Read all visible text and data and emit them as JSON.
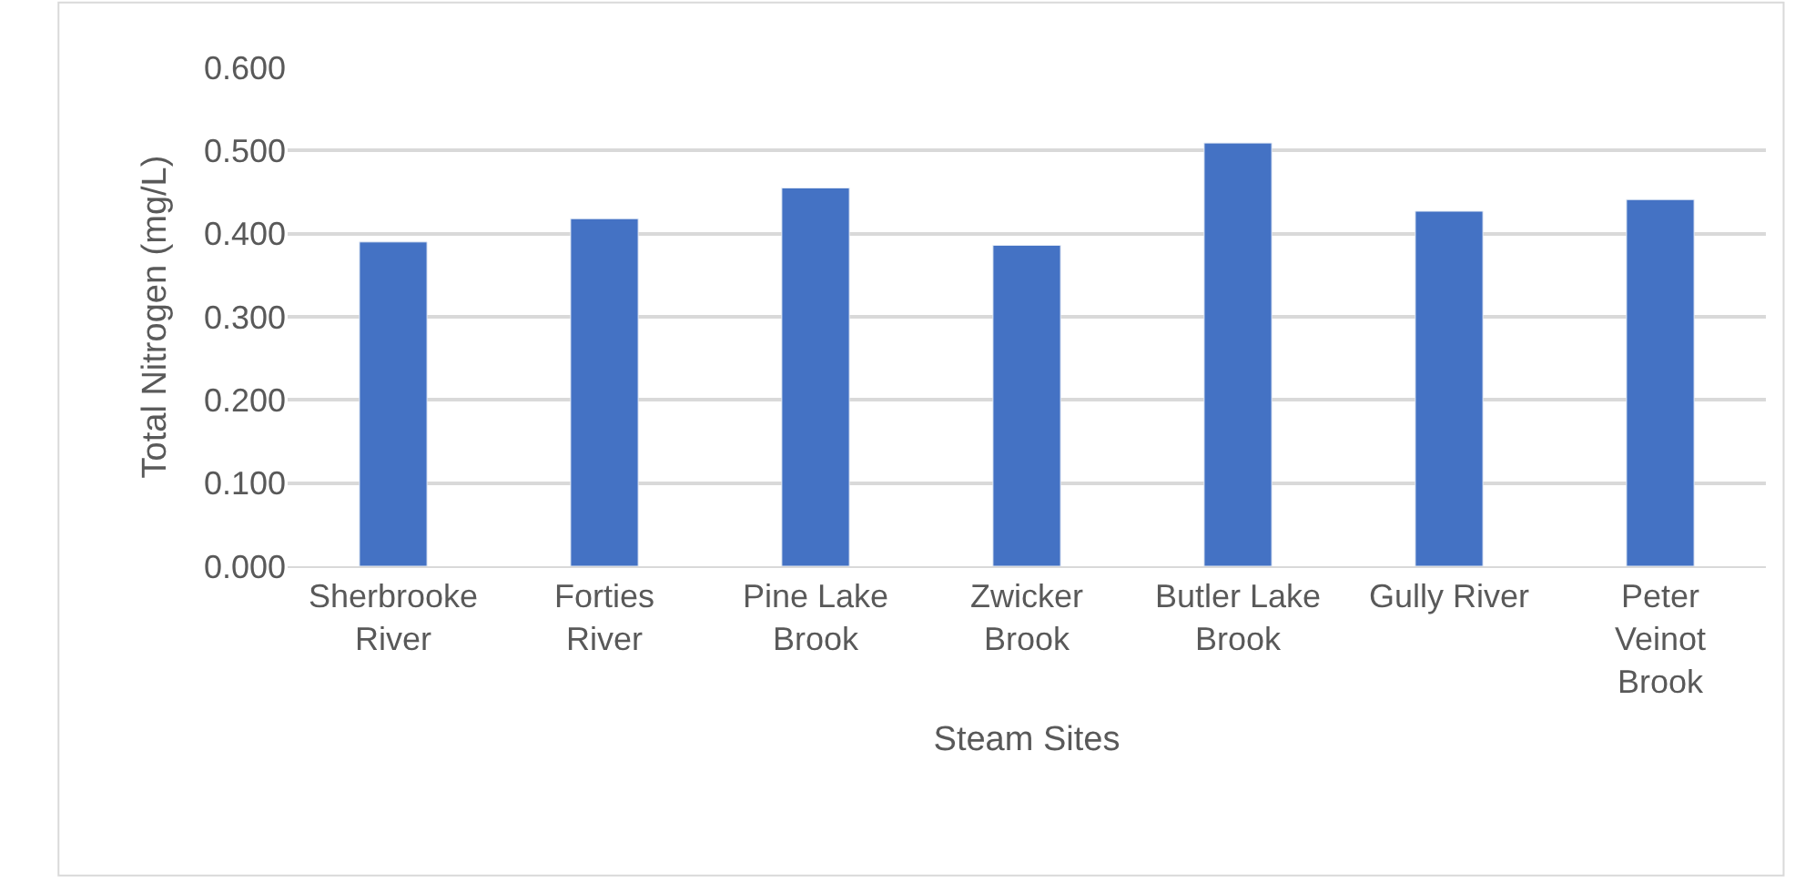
{
  "chart_data": {
    "type": "bar",
    "categories": [
      "Sherbrooke River",
      "Forties River",
      "Pine Lake Brook",
      "Zwicker Brook",
      "Butler Lake Brook",
      "Gully River",
      "Peter Veinot Brook"
    ],
    "values": [
      0.39,
      0.418,
      0.455,
      0.386,
      0.509,
      0.427,
      0.441
    ],
    "color": "#4472c4",
    "xlabel": "Steam Sites",
    "ylabel": "Total Nitrogen (mg/L)",
    "ylim": [
      0,
      0.6
    ],
    "yticks": [
      {
        "value": 0,
        "label": "0.000"
      },
      {
        "value": 0.1,
        "label": "0.100"
      },
      {
        "value": 0.2,
        "label": "0.200"
      },
      {
        "value": 0.3,
        "label": "0.300"
      },
      {
        "value": 0.4,
        "label": "0.400"
      },
      {
        "value": 0.5,
        "label": "0.500"
      },
      {
        "value": 0.6,
        "label": "0.600"
      }
    ],
    "grid": "y",
    "legend": false
  }
}
